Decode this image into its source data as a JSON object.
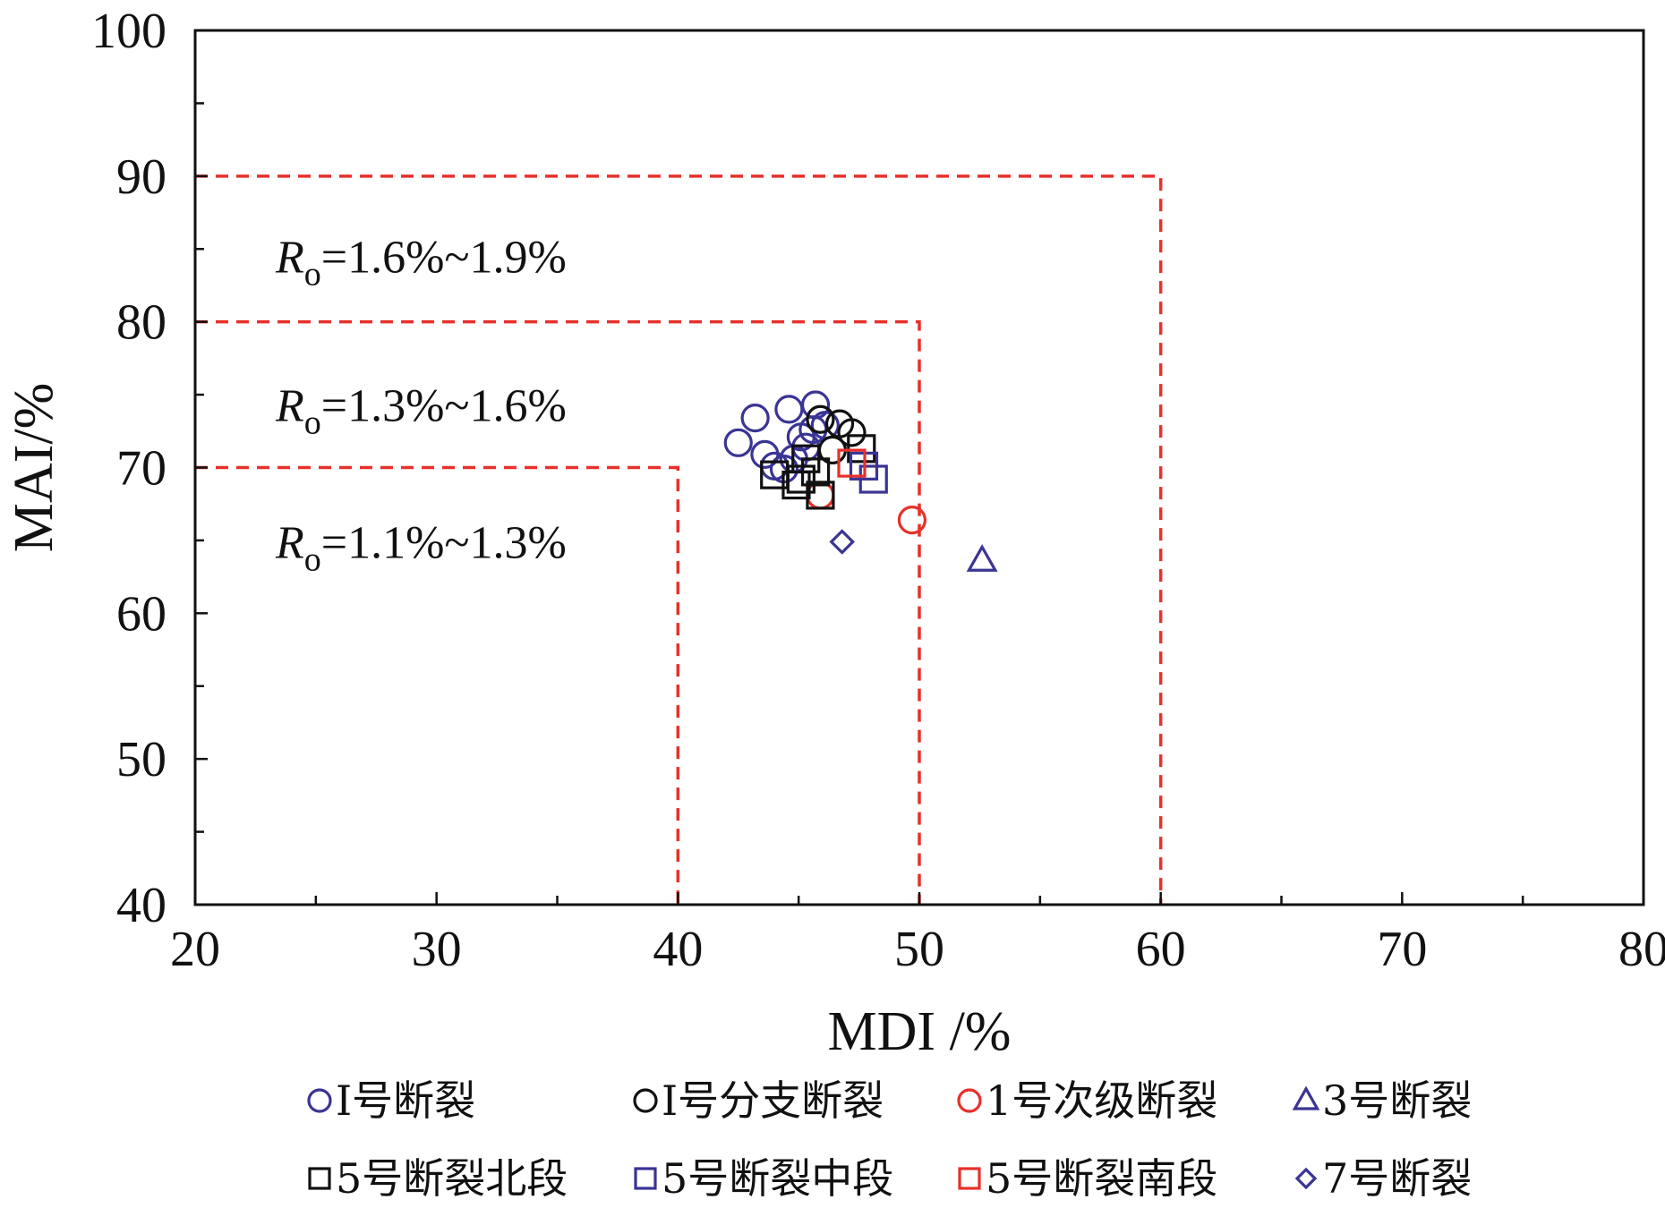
{
  "chart_data": {
    "type": "scatter",
    "title": "",
    "xlabel": "MDI /%",
    "ylabel": "MAI/%",
    "xlim": [
      20,
      80
    ],
    "ylim": [
      40,
      100
    ],
    "x_ticks": [
      "20",
      "30",
      "40",
      "50",
      "60",
      "70",
      "80"
    ],
    "y_ticks": [
      "40",
      "50",
      "60",
      "70",
      "80",
      "90",
      "100"
    ],
    "grid": false,
    "legend_position": "bottom",
    "zones": [
      {
        "label_var": "R",
        "label_sub": "o",
        "label_rest": "=1.1%~1.3%",
        "x_max": 40,
        "y_max": 70
      },
      {
        "label_var": "R",
        "label_sub": "o",
        "label_rest": "=1.3%~1.6%",
        "x_max": 50,
        "y_max": 80
      },
      {
        "label_var": "R",
        "label_sub": "o",
        "label_rest": "=1.6%~1.9%",
        "x_max": 60,
        "y_max": 90
      }
    ],
    "zone_color": "#e8302a",
    "series": [
      {
        "name": "I号断裂",
        "marker": "circle",
        "color": "#3a3494",
        "points": [
          [
            42.5,
            71.7
          ],
          [
            43.2,
            73.4
          ],
          [
            43.6,
            70.9
          ],
          [
            44.0,
            70.1
          ],
          [
            44.4,
            69.9
          ],
          [
            44.6,
            74.0
          ],
          [
            45.1,
            72.1
          ],
          [
            45.7,
            74.3
          ],
          [
            45.6,
            72.6
          ],
          [
            46.1,
            72.9
          ],
          [
            45.3,
            71.4
          ],
          [
            44.8,
            70.6
          ]
        ]
      },
      {
        "name": "I号分支断裂",
        "marker": "circle",
        "color": "#111111",
        "points": [
          [
            45.9,
            73.3
          ],
          [
            46.7,
            73.0
          ],
          [
            47.2,
            72.4
          ],
          [
            46.4,
            71.2
          ]
        ]
      },
      {
        "name": "1号次级断裂",
        "marker": "circle",
        "color": "#e8302a",
        "points": [
          [
            49.7,
            66.4
          ],
          [
            45.9,
            68.1
          ]
        ]
      },
      {
        "name": "3号断裂",
        "marker": "triangle",
        "color": "#3a3494",
        "points": [
          [
            52.6,
            63.6
          ]
        ]
      },
      {
        "name": "5号断裂北段",
        "marker": "square",
        "color": "#111111",
        "points": [
          [
            44.0,
            69.5
          ],
          [
            44.9,
            68.8
          ],
          [
            45.3,
            70.6
          ],
          [
            45.7,
            69.7
          ],
          [
            45.9,
            68.1
          ],
          [
            47.6,
            71.3
          ],
          [
            45.1,
            69.2
          ]
        ]
      },
      {
        "name": "5号断裂中段",
        "marker": "square",
        "color": "#3a3494",
        "points": [
          [
            48.1,
            69.2
          ],
          [
            47.7,
            70.1
          ]
        ]
      },
      {
        "name": "5号断裂南段",
        "marker": "square",
        "color": "#e8302a",
        "points": [
          [
            47.2,
            70.3
          ]
        ]
      },
      {
        "name": "7号断裂",
        "marker": "diamond",
        "color": "#3a3494",
        "points": [
          [
            46.8,
            64.9
          ]
        ]
      }
    ]
  }
}
